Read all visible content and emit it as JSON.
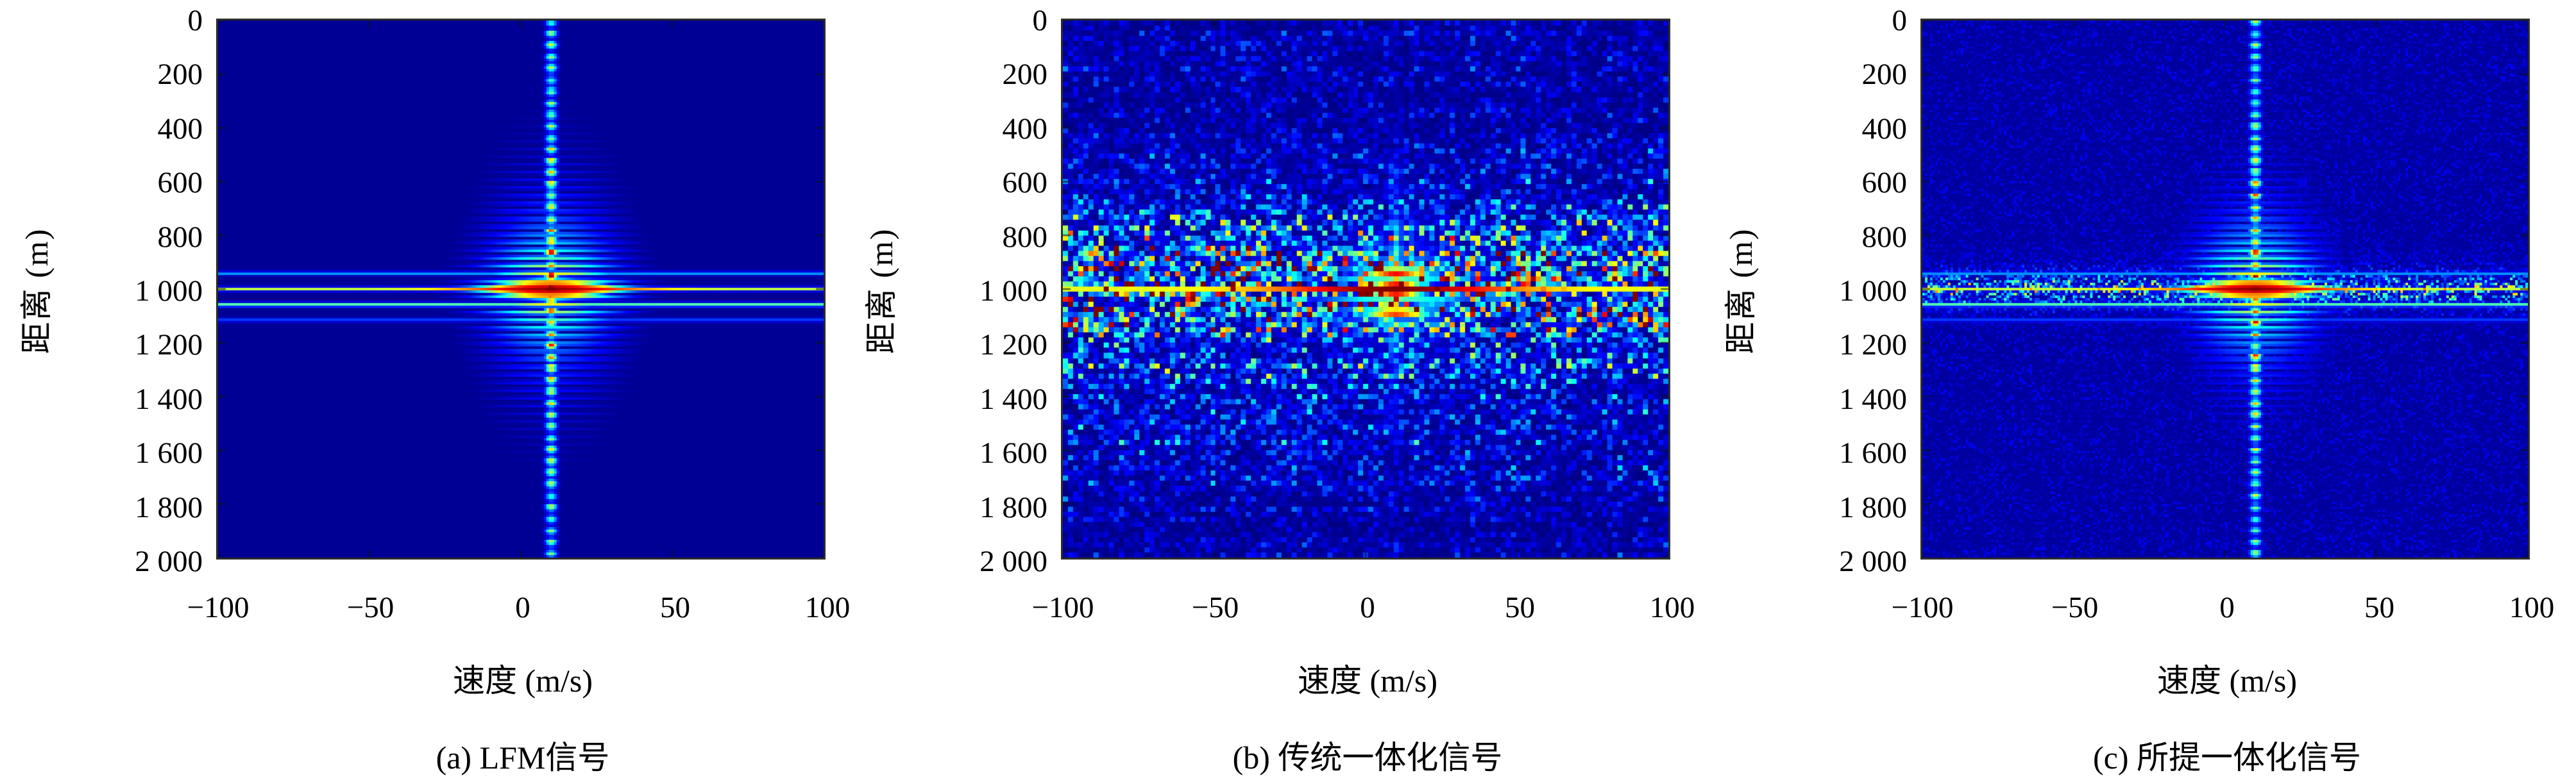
{
  "axes": {
    "x": {
      "label": "速度 (m/s)",
      "tick_labels": [
        "−100",
        "−50",
        "0",
        "50",
        "100"
      ],
      "tick_values": [
        -100,
        -50,
        0,
        50,
        100
      ],
      "min": -100,
      "max": 100
    },
    "y": {
      "label": "距离 (m)",
      "tick_labels": [
        "0",
        "200",
        "400",
        "600",
        "800",
        "1 000",
        "1 200",
        "1 400",
        "1 600",
        "1 800",
        "2 000"
      ],
      "tick_values": [
        0,
        200,
        400,
        600,
        800,
        1000,
        1200,
        1400,
        1600,
        1800,
        2000
      ],
      "min": 0,
      "max": 2000
    }
  },
  "panels": [
    {
      "id": "a",
      "caption": "(a) LFM信号",
      "render": {
        "kind": "clean",
        "seed": 7,
        "cols": 238,
        "rows": 211
      }
    },
    {
      "id": "b",
      "caption": "(b) 传统一体化信号",
      "render": {
        "kind": "noisy",
        "seed": 42,
        "cols": 119,
        "rows": 105
      }
    },
    {
      "id": "c",
      "caption": "(c) 所提一体化信号",
      "render": {
        "kind": "clean_speckle",
        "seed": 99,
        "cols": 238,
        "rows": 211
      }
    }
  ],
  "colors": {
    "background": "#ffffff",
    "frame": "#2b2b2b",
    "heatmap_floor": "#00008f",
    "text": "#000000",
    "colormap": "jet"
  },
  "chart_data": [
    {
      "type": "heatmap",
      "title": "(a) LFM信号",
      "xlabel": "速度 (m/s)",
      "ylabel": "距离 (m)",
      "x_range": [
        -100,
        100
      ],
      "y_range": [
        0,
        2000
      ],
      "x_ticks": [
        -100,
        -50,
        0,
        50,
        100
      ],
      "y_ticks": [
        0,
        200,
        400,
        600,
        800,
        1000,
        1200,
        1400,
        1600,
        1800,
        2000
      ],
      "colormap": "jet",
      "legend": "none",
      "grid": false,
      "target": {
        "velocity_mps": 10,
        "range_m": 1000,
        "peak_level": 1.0
      },
      "features": {
        "range_sidelobe_line": {
          "range_m": 1000,
          "level": 0.6,
          "full_width": true
        },
        "secondary_lines_m": [
          942,
          1058,
          1115
        ],
        "doppler_sidelobe_line": {
          "velocity_mps": 10,
          "dotted": true,
          "dot_period_m": 43
        },
        "near_peak_stripe_period_m": 29,
        "noise_floor": 0.02
      }
    },
    {
      "type": "heatmap",
      "title": "(b) 传统一体化信号",
      "xlabel": "速度 (m/s)",
      "ylabel": "距离 (m)",
      "x_range": [
        -100,
        100
      ],
      "y_range": [
        0,
        2000
      ],
      "x_ticks": [
        -100,
        -50,
        0,
        50,
        100
      ],
      "y_ticks": [
        0,
        200,
        400,
        600,
        800,
        1000,
        1200,
        1400,
        1600,
        1800,
        2000
      ],
      "colormap": "jet",
      "legend": "none",
      "grid": false,
      "target": {
        "velocity_mps": 10,
        "range_m": 1000,
        "peak_level": 1.0
      },
      "features": {
        "range_sidelobe_line": {
          "range_m": 1000,
          "level": 0.65,
          "full_width": true
        },
        "hot_blobs_range_m": [
          938,
          1088
        ],
        "doppler_streak": {
          "velocity_mps": 10,
          "extent_m": 400
        },
        "speckle_noise": {
          "bright_bands_range_m": [
            912,
            1092
          ],
          "band_level": 0.55,
          "mid_level": 0.33,
          "far_level": 0.12,
          "distribution": "exponential"
        }
      }
    },
    {
      "type": "heatmap",
      "title": "(c) 所提一体化信号",
      "xlabel": "速度 (m/s)",
      "ylabel": "距离 (m)",
      "x_range": [
        -100,
        100
      ],
      "y_range": [
        0,
        2000
      ],
      "x_ticks": [
        -100,
        -50,
        0,
        50,
        100
      ],
      "y_ticks": [
        0,
        200,
        400,
        600,
        800,
        1000,
        1200,
        1400,
        1600,
        1800,
        2000
      ],
      "colormap": "jet",
      "legend": "none",
      "grid": false,
      "target": {
        "velocity_mps": 10,
        "range_m": 1000,
        "peak_level": 1.0
      },
      "features": {
        "range_sidelobe_line": {
          "range_m": 1000,
          "level": 0.6,
          "full_width": true
        },
        "secondary_lines_m": [
          942,
          1058
        ],
        "doppler_sidelobe_line": {
          "velocity_mps": 10,
          "dotted": true,
          "dot_period_m": 43
        },
        "residual_speckle_near_line": {
          "range_m": 1000,
          "half_width_m": 120,
          "level": 0.35
        },
        "noise_floor": 0.03
      }
    }
  ]
}
